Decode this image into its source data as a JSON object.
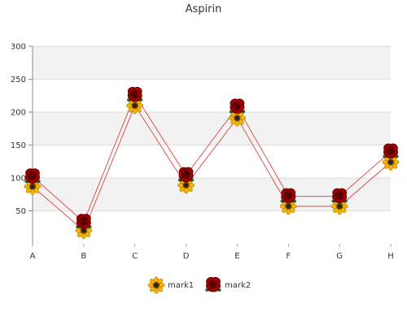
{
  "chart_data": {
    "type": "line",
    "title": "Aspirin",
    "categories": [
      "A",
      "B",
      "C",
      "D",
      "E",
      "F",
      "G",
      "H"
    ],
    "series": [
      {
        "name": "mark1",
        "values": [
          87,
          20,
          210,
          89,
          191,
          57,
          57,
          124
        ],
        "color": "#e0a81b",
        "marker": "sunflower-icon"
      },
      {
        "name": "mark2",
        "values": [
          102,
          33,
          226,
          104,
          208,
          72,
          72,
          140
        ],
        "color": "#8b0000",
        "marker": "rose-icon"
      }
    ],
    "ylim": [
      0,
      300
    ],
    "yticks": [
      50,
      100,
      150,
      200,
      250,
      300
    ],
    "grid": true,
    "line_color": "#d9534f",
    "legend_position": "bottom-center"
  }
}
